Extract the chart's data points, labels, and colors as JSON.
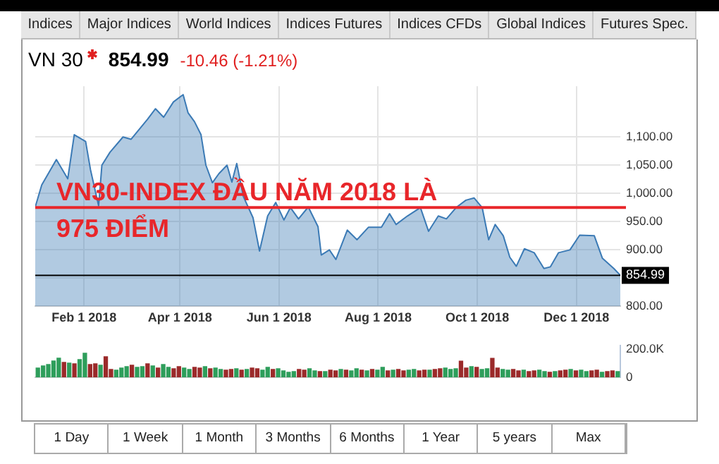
{
  "chart_data": [
    {
      "type": "other",
      "annotations": [
        "Indices",
        "Major Indices",
        "World Indices",
        "Indices Futures",
        "Indices CFDs",
        "Global Indices",
        "Futures Spec."
      ]
    },
    {
      "type": "area",
      "title": "VN 30",
      "subtitle": "854.99",
      "annotations": [
        "-10.46  (-1.21%)"
      ],
      "x": [
        "2018-01-02",
        "2018-01-06",
        "2018-01-15",
        "2018-01-22",
        "2018-01-26",
        "2018-02-02",
        "2018-02-05",
        "2018-02-10",
        "2018-02-12",
        "2018-02-17",
        "2018-02-25",
        "2018-03-02",
        "2018-03-12",
        "2018-03-17",
        "2018-03-22",
        "2018-03-28",
        "2018-04-03",
        "2018-04-06",
        "2018-04-10",
        "2018-04-14",
        "2018-04-17",
        "2018-04-21",
        "2018-04-25",
        "2018-04-30",
        "2018-05-03",
        "2018-05-06",
        "2018-05-10",
        "2018-05-16",
        "2018-05-20",
        "2018-05-25",
        "2018-05-30",
        "2018-06-04",
        "2018-06-08",
        "2018-06-13",
        "2018-06-19",
        "2018-06-25",
        "2018-06-27",
        "2018-07-02",
        "2018-07-06",
        "2018-07-13",
        "2018-07-19",
        "2018-07-26",
        "2018-08-03",
        "2018-08-08",
        "2018-08-12",
        "2018-08-19",
        "2018-08-27",
        "2018-09-01",
        "2018-09-07",
        "2018-09-12",
        "2018-09-18",
        "2018-09-24",
        "2018-09-29",
        "2018-10-04",
        "2018-10-08",
        "2018-10-12",
        "2018-10-17",
        "2018-10-21",
        "2018-10-25",
        "2018-10-30",
        "2018-11-05",
        "2018-11-11",
        "2018-11-15",
        "2018-11-20",
        "2018-11-27",
        "2018-12-03",
        "2018-12-12",
        "2018-12-17",
        "2018-12-24",
        "2018-12-28"
      ],
      "values": [
        976,
        1015,
        1060,
        1026,
        1104,
        1092,
        1042,
        978,
        1050,
        1073,
        1100,
        1096,
        1131,
        1150,
        1135,
        1162,
        1175,
        1143,
        1127,
        1104,
        1050,
        1019,
        1035,
        1050,
        1020,
        1053,
        995,
        957,
        898,
        960,
        984,
        953,
        975,
        955,
        976,
        941,
        891,
        900,
        883,
        935,
        918,
        940,
        940,
        964,
        945,
        960,
        975,
        933,
        960,
        955,
        975,
        988,
        992,
        975,
        918,
        945,
        925,
        887,
        871,
        902,
        895,
        867,
        870,
        895,
        900,
        926,
        925,
        885,
        867,
        854.99
      ],
      "color": "#3b7ab5",
      "xlim": [
        "2018-01-02",
        "2018-12-28"
      ],
      "xticks": [
        {
          "value": "2018-02-01",
          "label": "Feb 1 2018"
        },
        {
          "value": "2018-04-01",
          "label": "Apr 1 2018"
        },
        {
          "value": "2018-06-01",
          "label": "Jun 1 2018"
        },
        {
          "value": "2018-08-01",
          "label": "Aug 1 2018"
        },
        {
          "value": "2018-10-01",
          "label": "Oct 1 2018"
        },
        {
          "value": "2018-12-01",
          "label": "Dec 1 2018"
        }
      ],
      "ylim": [
        800,
        1190
      ],
      "yticks": [
        {
          "value": 800,
          "label": "800.00"
        },
        {
          "value": 850,
          "label": null
        },
        {
          "value": 900,
          "label": "900.00"
        },
        {
          "value": 950,
          "label": "950.00"
        },
        {
          "value": 1000,
          "label": "1,000.00"
        },
        {
          "value": 1050,
          "label": "1,050.00"
        },
        {
          "value": 1100,
          "label": "1,100.00"
        }
      ],
      "grid": true,
      "ref_lines": [
        {
          "axis": "y",
          "value": 975,
          "label": "VN30-INDEX ĐẦU NĂM 2018 LÀ 975 ĐIỂM",
          "color": "#e8262a"
        },
        {
          "axis": "y",
          "value": 854.99,
          "label": "854.99",
          "color": "#000000"
        }
      ]
    },
    {
      "type": "bar",
      "categories": [
        null,
        null,
        null,
        null,
        null,
        null,
        null,
        null,
        null,
        null,
        null,
        null,
        null,
        null,
        null,
        null,
        null,
        null,
        null,
        null,
        null,
        null,
        null,
        null,
        null,
        null,
        null,
        null,
        null,
        null,
        null,
        null,
        null,
        null,
        null,
        null,
        null,
        null,
        null,
        null,
        null,
        null,
        null,
        null,
        null,
        null,
        null,
        null,
        null,
        null,
        null,
        null,
        null,
        null,
        null,
        null,
        null,
        null,
        null,
        null,
        null,
        null,
        null,
        null,
        null,
        null,
        null,
        null,
        null,
        null,
        null,
        null,
        null,
        null,
        null,
        null,
        null,
        null,
        null,
        null,
        null,
        null,
        null,
        null,
        null,
        null,
        null,
        null,
        null,
        null,
        null,
        null,
        null,
        null,
        null,
        null,
        null,
        null,
        null,
        null,
        null,
        null,
        null,
        null,
        null,
        null,
        null,
        null,
        null,
        null,
        null,
        null
      ],
      "values": [
        70,
        85,
        95,
        120,
        140,
        110,
        105,
        100,
        130,
        175,
        95,
        100,
        90,
        150,
        60,
        55,
        70,
        80,
        90,
        75,
        80,
        100,
        85,
        70,
        95,
        75,
        65,
        80,
        70,
        60,
        75,
        70,
        80,
        65,
        70,
        60,
        55,
        60,
        65,
        55,
        60,
        70,
        65,
        55,
        75,
        60,
        65,
        50,
        40,
        45,
        60,
        55,
        65,
        50,
        45,
        45,
        55,
        50,
        60,
        55,
        50,
        65,
        55,
        50,
        60,
        55,
        75,
        50,
        55,
        60,
        50,
        55,
        60,
        50,
        55,
        55,
        60,
        65,
        70,
        60,
        65,
        118,
        70,
        80,
        75,
        60,
        65,
        138,
        70,
        60,
        55,
        60,
        50,
        55,
        45,
        50,
        55,
        45,
        40,
        45,
        50,
        55,
        60,
        50,
        55,
        45,
        50,
        55,
        40,
        45,
        50,
        45
      ],
      "colors": [
        "#2e9e5b",
        "#2e9e5b",
        "#2e9e5b",
        "#2e9e5b",
        "#2e9e5b",
        "#9b2a2a",
        "#2e9e5b",
        "#9b2a2a",
        "#2e9e5b",
        "#2e9e5b",
        "#9b2a2a",
        "#9b2a2a",
        "#2e9e5b",
        "#9b2a2a",
        "#9b2a2a",
        "#2e9e5b",
        "#2e9e5b",
        "#2e9e5b",
        "#9b2a2a",
        "#2e9e5b",
        "#2e9e5b",
        "#9b2a2a",
        "#2e9e5b",
        "#9b2a2a",
        "#2e9e5b",
        "#2e9e5b",
        "#9b2a2a",
        "#9b2a2a",
        "#2e9e5b",
        "#2e9e5b",
        "#9b2a2a",
        "#9b2a2a",
        "#2e9e5b",
        "#9b2a2a",
        "#2e9e5b",
        "#2e9e5b",
        "#9b2a2a",
        "#9b2a2a",
        "#2e9e5b",
        "#9b2a2a",
        "#2e9e5b",
        "#9b2a2a",
        "#9b2a2a",
        "#2e9e5b",
        "#2e9e5b",
        "#9b2a2a",
        "#2e9e5b",
        "#2e9e5b",
        "#2e9e5b",
        "#2e9e5b",
        "#9b2a2a",
        "#9b2a2a",
        "#2e9e5b",
        "#2e9e5b",
        "#9b2a2a",
        "#2e9e5b",
        "#9b2a2a",
        "#9b2a2a",
        "#2e9e5b",
        "#9b2a2a",
        "#2e9e5b",
        "#2e9e5b",
        "#9b2a2a",
        "#2e9e5b",
        "#9b2a2a",
        "#2e9e5b",
        "#2e9e5b",
        "#9b2a2a",
        "#2e9e5b",
        "#9b2a2a",
        "#9b2a2a",
        "#2e9e5b",
        "#2e9e5b",
        "#9b2a2a",
        "#9b2a2a",
        "#2e9e5b",
        "#9b2a2a",
        "#9b2a2a",
        "#2e9e5b",
        "#2e9e5b",
        "#2e9e5b",
        "#9b2a2a",
        "#9b2a2a",
        "#2e9e5b",
        "#9b2a2a",
        "#2e9e5b",
        "#2e9e5b",
        "#9b2a2a",
        "#9b2a2a",
        "#2e9e5b",
        "#2e9e5b",
        "#9b2a2a",
        "#9b2a2a",
        "#2e9e5b",
        "#9b2a2a",
        "#9b2a2a",
        "#2e9e5b",
        "#2e9e5b",
        "#9b2a2a",
        "#2e9e5b",
        "#9b2a2a",
        "#9b2a2a",
        "#2e9e5b",
        "#9b2a2a",
        "#2e9e5b",
        "#2e9e5b",
        "#9b2a2a",
        "#9b2a2a",
        "#2e9e5b",
        "#9b2a2a",
        "#9b2a2a",
        "#2e9e5b"
      ],
      "ylim": [
        0,
        225
      ],
      "yticks": [
        0,
        {
          "value": 200,
          "label": "200.0K"
        }
      ]
    },
    {
      "type": "other",
      "annotations": [
        "1 Day",
        "1 Week",
        "1 Month",
        "3 Months",
        "6 Months",
        "1 Year",
        "5 years",
        "Max"
      ]
    }
  ]
}
